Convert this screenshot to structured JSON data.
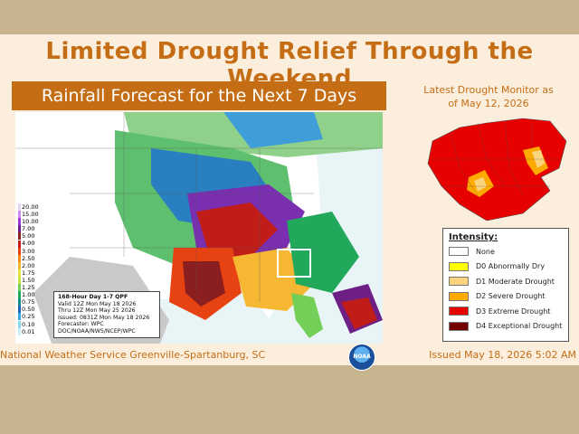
{
  "title": "Limited Drought Relief Through the Weekend",
  "rainfall_header": "Rainfall Forecast for the Next 7 Days",
  "qpf_scale": [
    "20.00",
    "15.00",
    "10.00",
    "7.00",
    "5.00",
    "4.00",
    "3.00",
    "2.50",
    "2.00",
    "1.75",
    "1.50",
    "1.25",
    "1.00",
    "0.75",
    "0.50",
    "0.25",
    "0.10",
    "0.01"
  ],
  "qpf_colors": [
    "#e7d6f7",
    "#d089f0",
    "#9a35d6",
    "#6e1f86",
    "#8b1e1e",
    "#c01d18",
    "#e74212",
    "#f78a1a",
    "#f6b732",
    "#e9e43c",
    "#c4e345",
    "#73cf58",
    "#21a85b",
    "#1b8a8d",
    "#1f64b9",
    "#38a6e3",
    "#8bd7f2",
    "#c7f0f6"
  ],
  "qpf_box": {
    "line1": "168-Hour Day 1-7 QPF",
    "line2": "Valid 12Z Mon May 18 2026",
    "line3": "Thru 12Z Mon May 25 2026",
    "line4": "Issued: 0831Z Mon May 18 2026",
    "line5": "Forecaster: WPC",
    "line6": "DOC/NOAA/NWS/NCEP/WPC"
  },
  "noaa_logo": "NOAA",
  "drought_caption_line1": "Latest Drought Monitor as",
  "drought_caption_line2": "of May 12, 2026",
  "legend": {
    "title": "Intensity:",
    "items": [
      {
        "label": "None",
        "color": "#ffffff"
      },
      {
        "label": "D0 Abnormally Dry",
        "color": "#ffff00"
      },
      {
        "label": "D1 Moderate Drought",
        "color": "#fcd37f"
      },
      {
        "label": "D2 Severe Drought",
        "color": "#ffaa00"
      },
      {
        "label": "D3 Extreme Drought",
        "color": "#e60000"
      },
      {
        "label": "D4 Exceptional Drought",
        "color": "#730000"
      }
    ]
  },
  "footer_left": "National Weather Service Greenville-Spartanburg, SC",
  "footer_right": "Issued May 18, 2026 5:02 AM"
}
